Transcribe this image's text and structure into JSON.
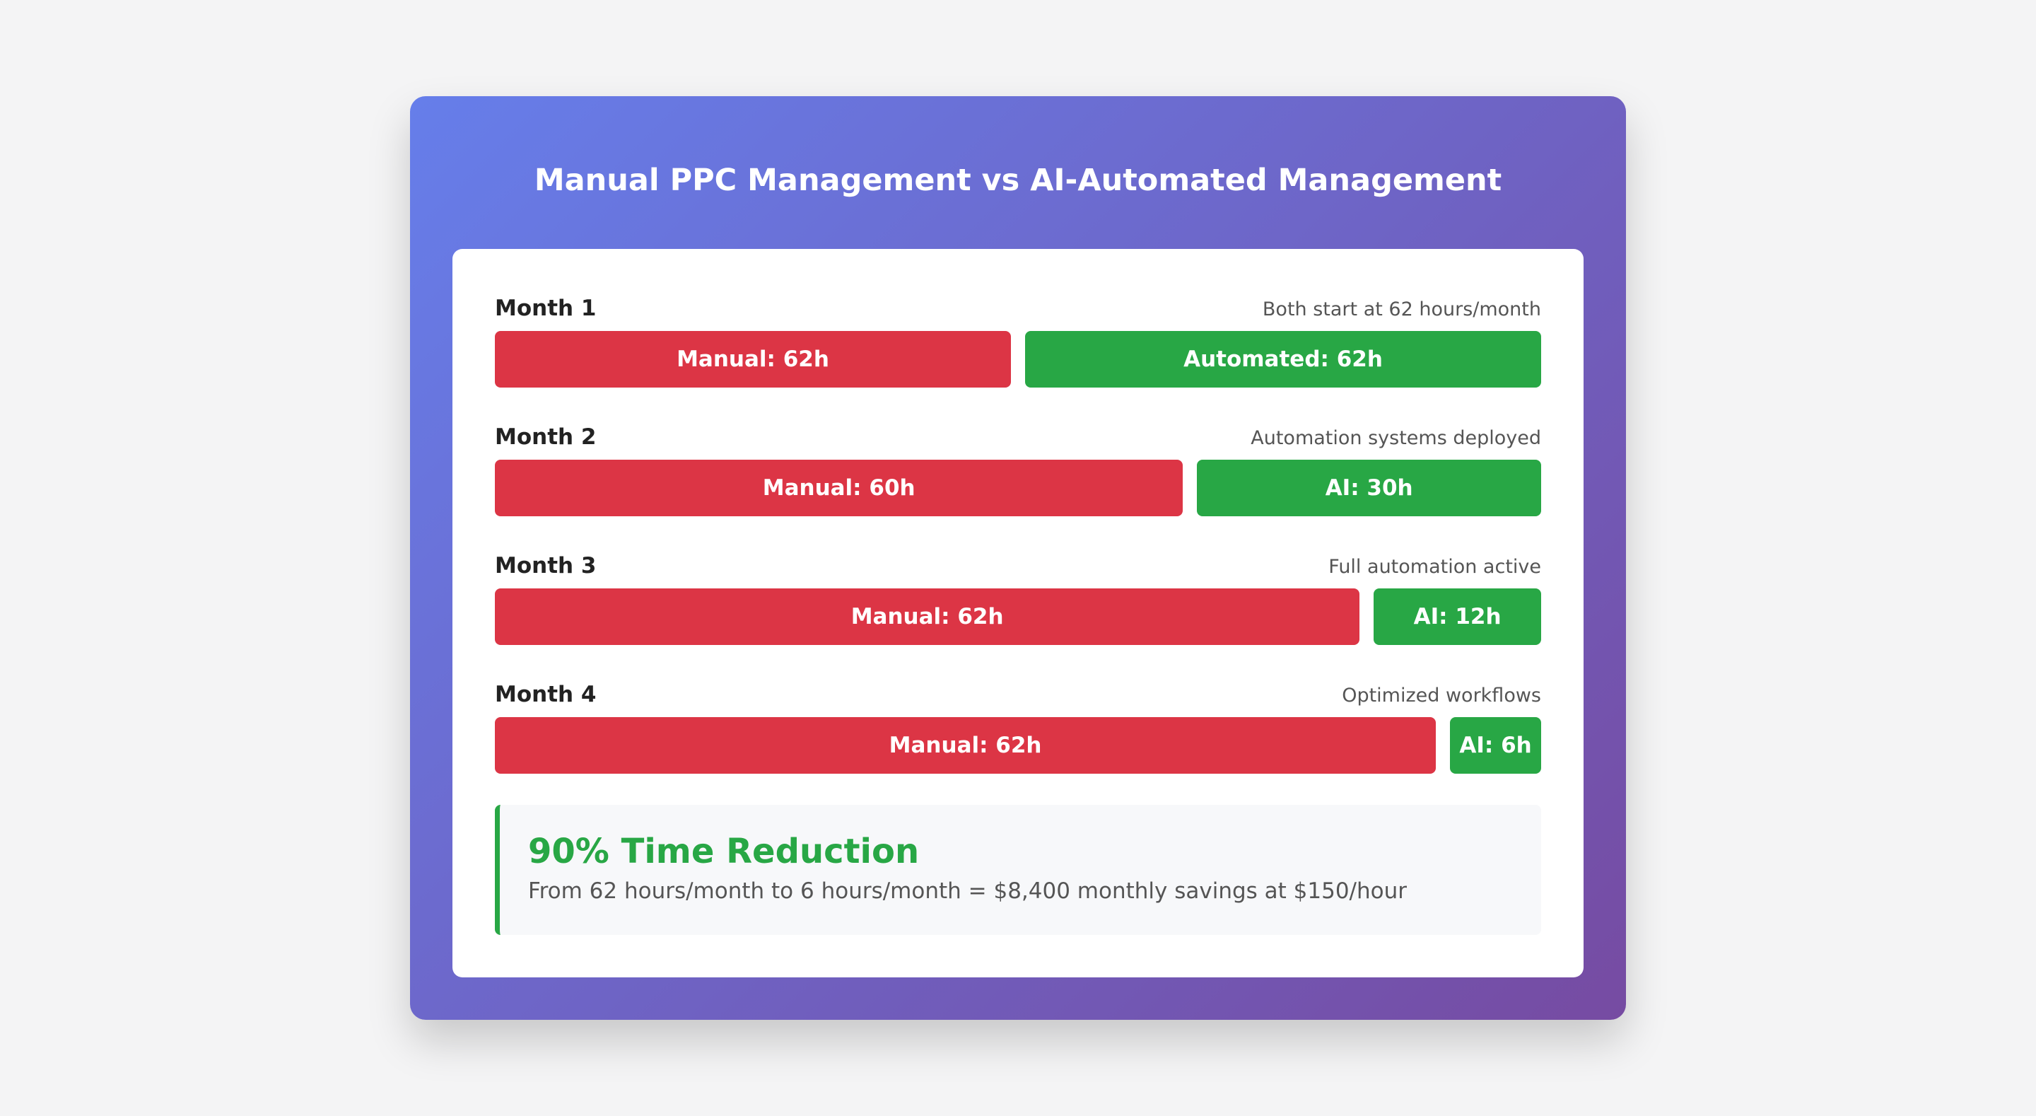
{
  "colors": {
    "manual": "#dc3545",
    "automated": "#28a745",
    "gradient_start": "#667eea",
    "gradient_end": "#764ba2",
    "panel": "#ffffff",
    "page_background": "#f4f4f5"
  },
  "chart_data": {
    "type": "bar",
    "title": "Manual PPC Management vs AI-Automated Management",
    "categories": [
      "Month 1",
      "Month 2",
      "Month 3",
      "Month 4"
    ],
    "notes": [
      "Both start at 62 hours/month",
      "Automation systems deployed",
      "Full automation active",
      "Optimized workflows"
    ],
    "series": [
      {
        "key": "manual",
        "values": [
          62,
          60,
          62,
          62
        ],
        "labels": [
          "Manual: 62h",
          "Manual: 60h",
          "Manual: 62h",
          "Manual: 62h"
        ]
      },
      {
        "key": "automated",
        "values": [
          62,
          30,
          12,
          6
        ],
        "labels": [
          "Automated: 62h",
          "AI: 30h",
          "AI: 12h",
          "AI: 6h"
        ]
      }
    ]
  },
  "summary": {
    "title": "90% Time Reduction",
    "text": "From 62 hours/month to 6 hours/month = $8,400 monthly savings at $150/hour"
  }
}
